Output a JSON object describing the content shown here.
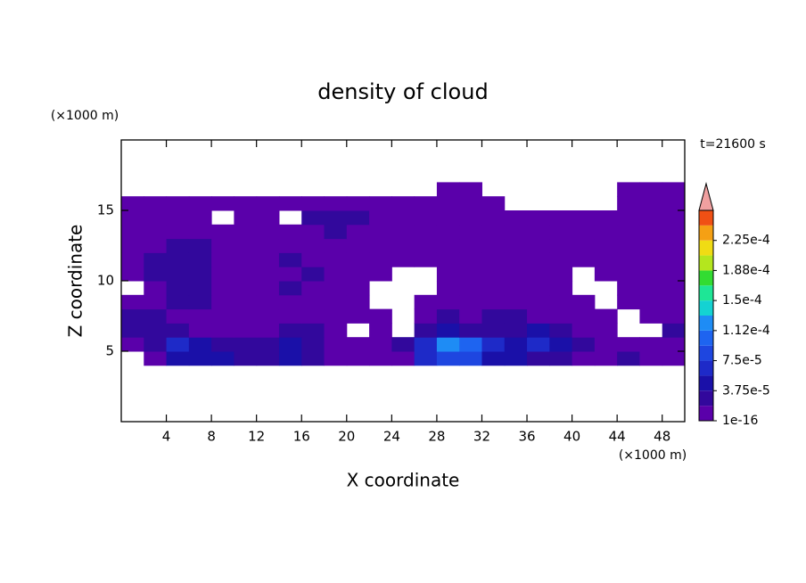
{
  "chart_data": {
    "type": "contour",
    "title": "density of cloud",
    "annotation": "t=21600 s",
    "xlabel": "X coordinate",
    "ylabel": "Z coordinate",
    "xunit": "(×1000 m)",
    "yunit": "(×1000 m)",
    "xlim": [
      0,
      50
    ],
    "ylim": [
      0,
      20
    ],
    "xticks": [
      4,
      8,
      12,
      16,
      20,
      24,
      28,
      32,
      36,
      40,
      44,
      48
    ],
    "yticks": [
      5,
      10,
      15
    ],
    "x": [
      1,
      3,
      5,
      7,
      9,
      11,
      13,
      15,
      17,
      19,
      21,
      23,
      25,
      27,
      29,
      31,
      33,
      35,
      37,
      39,
      41,
      43,
      45,
      47,
      49
    ],
    "y": [
      4.5,
      5.5,
      6.5,
      7.5,
      8.5,
      9.5,
      10.5,
      11.5,
      12.5,
      13.5,
      14.5,
      15.5,
      16.5
    ],
    "z": [
      [
        null,
        1e-05,
        5e-05,
        5e-05,
        4e-05,
        3e-05,
        3e-05,
        5e-05,
        2e-05,
        1e-05,
        1e-05,
        1e-05,
        1e-05,
        6e-05,
        9e-05,
        8e-05,
        4e-05,
        4e-05,
        3e-05,
        2e-05,
        1e-05,
        1e-05,
        3e-05,
        1e-05,
        1e-05
      ],
      [
        1e-05,
        3e-05,
        6e-05,
        5e-05,
        3e-05,
        2e-05,
        2e-05,
        4e-05,
        2e-05,
        1e-05,
        1e-05,
        1e-05,
        2e-05,
        6e-05,
        0.00013,
        0.0001,
        6e-05,
        5e-05,
        7e-05,
        5e-05,
        3e-05,
        1e-05,
        1e-05,
        1e-05,
        1e-05
      ],
      [
        3e-05,
        2e-05,
        2e-05,
        1e-05,
        1e-05,
        1e-05,
        1e-05,
        2e-05,
        3e-05,
        1e-05,
        null,
        1e-05,
        null,
        3e-05,
        4e-05,
        2e-05,
        3e-05,
        3e-05,
        5e-05,
        3e-05,
        1e-05,
        1e-05,
        null,
        null,
        2e-05
      ],
      [
        3e-05,
        2e-05,
        1e-05,
        1e-05,
        1e-05,
        1e-05,
        1e-05,
        1e-05,
        1e-05,
        1e-05,
        1e-05,
        1e-05,
        null,
        1e-05,
        2e-05,
        1e-05,
        2e-05,
        3e-05,
        1e-05,
        1e-05,
        1e-05,
        1e-05,
        null,
        1e-05,
        1e-05
      ],
      [
        1e-05,
        1e-05,
        2e-05,
        2e-05,
        1e-05,
        1e-05,
        1e-05,
        1e-05,
        1e-05,
        1e-05,
        1e-05,
        null,
        null,
        1e-05,
        1e-05,
        1e-05,
        1e-05,
        1e-05,
        1e-05,
        1e-05,
        1e-05,
        null,
        1e-05,
        1e-05,
        1e-05
      ],
      [
        null,
        1e-05,
        2e-05,
        2e-05,
        1e-05,
        1e-05,
        1e-05,
        2e-05,
        1e-05,
        1e-05,
        1e-05,
        null,
        null,
        null,
        1e-05,
        1e-05,
        1e-05,
        1e-05,
        1e-05,
        1e-05,
        null,
        null,
        1e-05,
        1e-05,
        1e-05
      ],
      [
        1e-05,
        2e-05,
        2e-05,
        2e-05,
        1e-05,
        1e-05,
        1e-05,
        1e-05,
        2e-05,
        1e-05,
        1e-05,
        1e-05,
        null,
        null,
        1e-05,
        1e-05,
        1e-05,
        1e-05,
        1e-05,
        1e-05,
        null,
        1e-05,
        1e-05,
        1e-05,
        1e-05
      ],
      [
        1e-05,
        2e-05,
        2e-05,
        2e-05,
        1e-05,
        1e-05,
        1e-05,
        2e-05,
        1e-05,
        1e-05,
        1e-05,
        1e-05,
        1e-05,
        1e-05,
        1e-05,
        1e-05,
        1e-05,
        1e-05,
        1e-05,
        1e-05,
        1e-05,
        1e-05,
        1e-05,
        1e-05,
        1e-05
      ],
      [
        1e-05,
        1e-05,
        2e-05,
        2e-05,
        1e-05,
        1e-05,
        1e-05,
        1e-05,
        1e-05,
        1e-05,
        1e-05,
        1e-05,
        1e-05,
        1e-05,
        1e-05,
        1e-05,
        1e-05,
        1e-05,
        1e-05,
        1e-05,
        1e-05,
        1e-05,
        1e-05,
        1e-05,
        1e-05
      ],
      [
        1e-05,
        1e-05,
        1e-05,
        1e-05,
        1e-05,
        1e-05,
        1e-05,
        1e-05,
        1e-05,
        2e-05,
        1e-05,
        1e-05,
        1e-05,
        1e-05,
        1e-05,
        1e-05,
        1e-05,
        1e-05,
        1e-05,
        1e-05,
        1e-05,
        1e-05,
        1e-05,
        1e-05,
        1e-05
      ],
      [
        1e-05,
        1e-05,
        1e-05,
        1e-05,
        null,
        1e-05,
        1e-05,
        null,
        2e-05,
        2e-05,
        2e-05,
        1e-05,
        1e-05,
        1e-05,
        1e-05,
        1e-05,
        1e-05,
        1e-05,
        1e-05,
        1e-05,
        1e-05,
        1e-05,
        1e-05,
        1e-05,
        1e-05
      ],
      [
        1e-05,
        1e-05,
        1e-05,
        1e-05,
        1e-05,
        1e-05,
        1e-05,
        1e-05,
        1e-05,
        1e-05,
        1e-05,
        1e-05,
        1e-05,
        1e-05,
        1e-05,
        1e-05,
        1e-05,
        null,
        null,
        null,
        null,
        null,
        1e-05,
        1e-05,
        1e-05
      ],
      [
        null,
        null,
        null,
        null,
        null,
        null,
        null,
        null,
        null,
        null,
        null,
        null,
        null,
        null,
        1e-05,
        1e-05,
        null,
        null,
        null,
        null,
        null,
        null,
        1e-05,
        1e-05,
        1e-05
      ]
    ],
    "colorbar": {
      "levels": [
        1e-16,
        1.875e-05,
        3.75e-05,
        5.625e-05,
        7.5e-05,
        9.375e-05,
        0.0001125,
        0.00013125,
        0.00015,
        0.00016875,
        0.0001875,
        0.00020625,
        0.000225,
        0.00024375,
        0.0002625
      ],
      "colors": [
        "#5a00aa",
        "#32089c",
        "#1a10a8",
        "#1e2ac8",
        "#1e46e0",
        "#1e64f0",
        "#1e8cf5",
        "#14d2d2",
        "#1ee696",
        "#32dc32",
        "#b4e61e",
        "#f0dc14",
        "#f5a014",
        "#f05014"
      ],
      "over_color": "#f0a0a0",
      "ticks": [
        {
          "value": 1e-16,
          "label": "1e-16"
        },
        {
          "value": 3.75e-05,
          "label": "3.75e-5"
        },
        {
          "value": 7.5e-05,
          "label": "7.5e-5"
        },
        {
          "value": 0.0001125,
          "label": "1.12e-4"
        },
        {
          "value": 0.00015,
          "label": "1.5e-4"
        },
        {
          "value": 0.0001875,
          "label": "1.88e-4"
        },
        {
          "value": 0.000225,
          "label": "2.25e-4"
        }
      ]
    }
  }
}
